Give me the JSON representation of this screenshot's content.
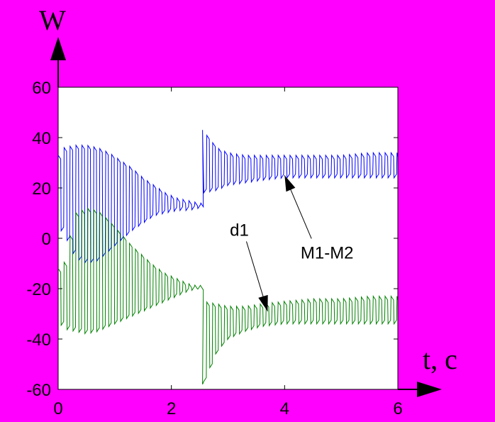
{
  "chart_data": {
    "type": "line",
    "title": "",
    "xlabel": "t, c",
    "ylabel": "W",
    "xlim": [
      0,
      6
    ],
    "ylim": [
      -60,
      60
    ],
    "xticks": [
      "0",
      "2",
      "4",
      "6"
    ],
    "yticks": [
      "60",
      "40",
      "20",
      "0",
      "-20",
      "-40",
      "-60"
    ],
    "grid": false,
    "background_color": "#ff00ff",
    "plot_color": "#ffffff",
    "series": [
      {
        "name": "M1-M2",
        "color": "#0000ff",
        "envelope_before_step": {
          "t": [
            0.0,
            0.1,
            0.3,
            0.5,
            0.7,
            0.9,
            1.1,
            1.3,
            1.5,
            1.7,
            1.9,
            2.1,
            2.3,
            2.5
          ],
          "upper": [
            33,
            36,
            37,
            37,
            36,
            34,
            31,
            28,
            24,
            21,
            18,
            16,
            15,
            14
          ],
          "lower": [
            4,
            2,
            -8,
            -10,
            -9,
            -5,
            -1,
            3,
            6,
            9,
            10,
            11,
            11,
            12
          ]
        },
        "step_time": 2.55,
        "overshoot_peak": 43,
        "envelope_after_step": {
          "t": [
            2.55,
            2.8,
            3.0,
            3.3,
            3.6,
            4.0,
            4.5,
            5.0,
            5.5,
            6.0
          ],
          "upper": [
            43,
            36,
            34,
            33,
            33,
            33,
            33,
            33,
            34,
            34
          ],
          "lower": [
            18,
            19,
            21,
            22,
            23,
            24,
            24,
            24,
            24,
            24
          ]
        }
      },
      {
        "name": "d1",
        "color": "#008000",
        "envelope_before_step": {
          "t": [
            0.0,
            0.1,
            0.3,
            0.5,
            0.7,
            0.9,
            1.1,
            1.3,
            1.5,
            1.7,
            1.9,
            2.1,
            2.3,
            2.5
          ],
          "upper": [
            -12,
            -10,
            10,
            12,
            11,
            7,
            2,
            -3,
            -7,
            -11,
            -14,
            -16,
            -18,
            -19
          ],
          "lower": [
            -33,
            -36,
            -37,
            -38,
            -37,
            -35,
            -33,
            -31,
            -29,
            -27,
            -25,
            -23,
            -21,
            -20
          ]
        },
        "step_time": 2.55,
        "overshoot_peak": -58,
        "envelope_after_step": {
          "t": [
            2.55,
            2.8,
            3.0,
            3.3,
            3.6,
            4.0,
            4.5,
            5.0,
            5.5,
            6.0
          ],
          "upper": [
            -25,
            -26,
            -27,
            -27,
            -26,
            -25,
            -24,
            -24,
            -23,
            -23
          ],
          "lower": [
            -58,
            -45,
            -40,
            -37,
            -35,
            -34,
            -34,
            -34,
            -34,
            -34
          ]
        }
      }
    ],
    "oscillation_period": 0.105,
    "annotations": [
      {
        "text": "M1-M2",
        "x": 4.75,
        "y": -8,
        "target": [
          4.0,
          25
        ]
      },
      {
        "text": "d1",
        "x": 3.2,
        "y": 1,
        "target": [
          3.7,
          -29
        ]
      }
    ]
  }
}
